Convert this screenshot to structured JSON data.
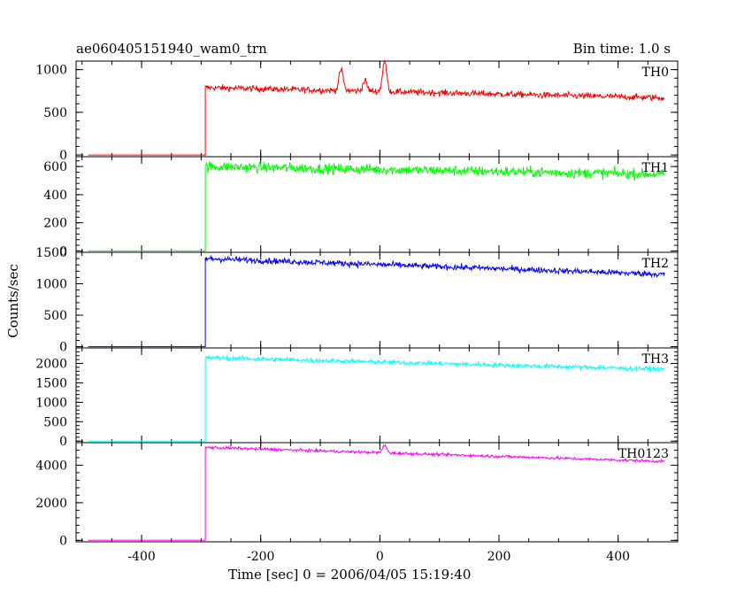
{
  "header": {
    "title": "ae060405151940_wam0_trn",
    "bin_time": "Bin time: 1.0 s"
  },
  "axes": {
    "ylabel": "Counts/sec",
    "xlabel": "Time [sec] 0 = 2006/04/05 15:19:40"
  },
  "chart_data": [
    {
      "type": "line",
      "name": "TH0",
      "color": "#ff0000",
      "xlim": [
        -510,
        500
      ],
      "ylim": [
        -20,
        1100
      ],
      "yticks": [
        0,
        500,
        1000
      ],
      "trigger_time": -293,
      "x_range": [
        -490,
        478
      ],
      "pre_level": 0,
      "post_start": 790,
      "post_end": 670,
      "noise": 35,
      "features": [
        {
          "x": -65,
          "y": 1000
        },
        {
          "x": -25,
          "y": 870
        },
        {
          "x": 8,
          "y": 1100
        }
      ]
    },
    {
      "type": "line",
      "name": "TH1",
      "color": "#00ff00",
      "xlim": [
        -510,
        500
      ],
      "ylim": [
        -10,
        670
      ],
      "yticks": [
        0,
        200,
        400,
        600
      ],
      "trigger_time": -293,
      "x_range": [
        -490,
        478
      ],
      "pre_level": 0,
      "post_start": 600,
      "post_end": 545,
      "noise": 35,
      "features": []
    },
    {
      "type": "line",
      "name": "TH2",
      "color": "#0000ff",
      "xlim": [
        -510,
        500
      ],
      "ylim": [
        -20,
        1500
      ],
      "yticks": [
        0,
        500,
        1000,
        1500
      ],
      "trigger_time": -293,
      "x_range": [
        -490,
        478
      ],
      "pre_level": 0,
      "post_start": 1400,
      "post_end": 1150,
      "noise": 45,
      "features": []
    },
    {
      "type": "line",
      "name": "TH3",
      "color": "#00ffff",
      "xlim": [
        -510,
        500
      ],
      "ylim": [
        -40,
        2400
      ],
      "yticks": [
        0,
        500,
        1000,
        1500,
        2000
      ],
      "trigger_time": -293,
      "x_range": [
        -490,
        478
      ],
      "pre_level": 0,
      "post_start": 2150,
      "post_end": 1850,
      "noise": 55,
      "features": []
    },
    {
      "type": "line",
      "name": "TH0123",
      "color": "#ff00ff",
      "xlim": [
        -510,
        500
      ],
      "ylim": [
        -80,
        5200
      ],
      "yticks": [
        0,
        2000,
        4000
      ],
      "xticks": [
        -400,
        -200,
        0,
        200,
        400
      ],
      "trigger_time": -293,
      "x_range": [
        -490,
        478
      ],
      "pre_level": 0,
      "post_start": 4950,
      "post_end": 4200,
      "noise": 70,
      "features": [
        {
          "x": 8,
          "y": 5050
        }
      ]
    }
  ]
}
